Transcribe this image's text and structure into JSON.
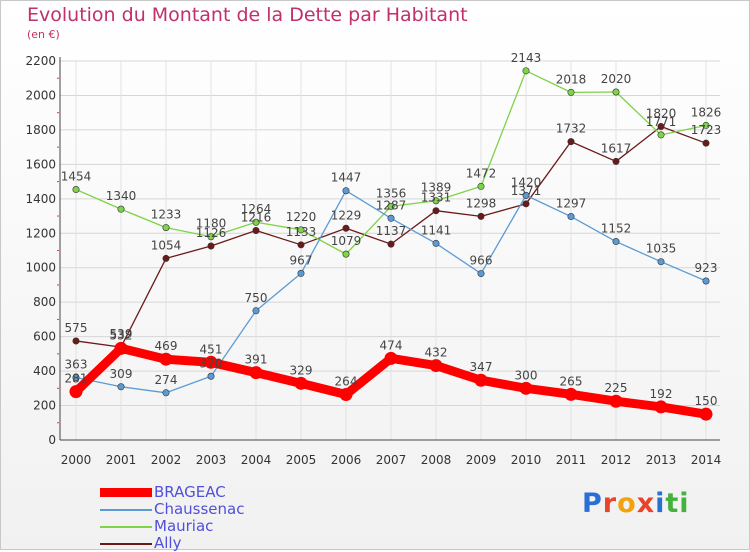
{
  "title": "Evolution du Montant de la Dette par Habitant",
  "unit_label": "(en €)",
  "brand": "Proxiti",
  "chart_data": {
    "type": "line",
    "title": "Evolution du Montant de la Dette par Habitant",
    "subtitle": "(en €)",
    "xlabel": "",
    "ylabel": "",
    "x": [
      "2000",
      "2001",
      "2002",
      "2003",
      "2004",
      "2005",
      "2006",
      "2007",
      "2008",
      "2009",
      "2010",
      "2011",
      "2012",
      "2013",
      "2014"
    ],
    "yticks": [
      "0",
      "200",
      "400",
      "600",
      "800",
      "1000",
      "1200",
      "1400",
      "1600",
      "1800",
      "2000",
      "2200"
    ],
    "ylim": [
      0,
      2200
    ],
    "grid": true,
    "legend_position": "bottom-left",
    "series": [
      {
        "name": "BRAGEAC",
        "color": "#ff0000",
        "values": [
          281,
          532,
          469,
          451,
          391,
          329,
          264,
          474,
          432,
          347,
          300,
          265,
          225,
          192,
          150
        ]
      },
      {
        "name": "Chaussenac",
        "color": "#5b9bd5",
        "values": [
          363,
          309,
          274,
          370,
          750,
          967,
          1447,
          1287,
          1141,
          966,
          1420,
          1297,
          1152,
          1035,
          923
        ]
      },
      {
        "name": "Mauriac",
        "color": "#7ed348",
        "values": [
          1454,
          1340,
          1233,
          1180,
          1264,
          1220,
          1079,
          1356,
          1389,
          1472,
          2143,
          2018,
          2020,
          1771,
          1826
        ]
      },
      {
        "name": "Ally",
        "color": "#6b1a1a",
        "values": [
          575,
          539,
          1054,
          1126,
          1216,
          1133,
          1229,
          1137,
          1331,
          1298,
          1371,
          1732,
          1617,
          1820,
          1723
        ]
      }
    ]
  }
}
